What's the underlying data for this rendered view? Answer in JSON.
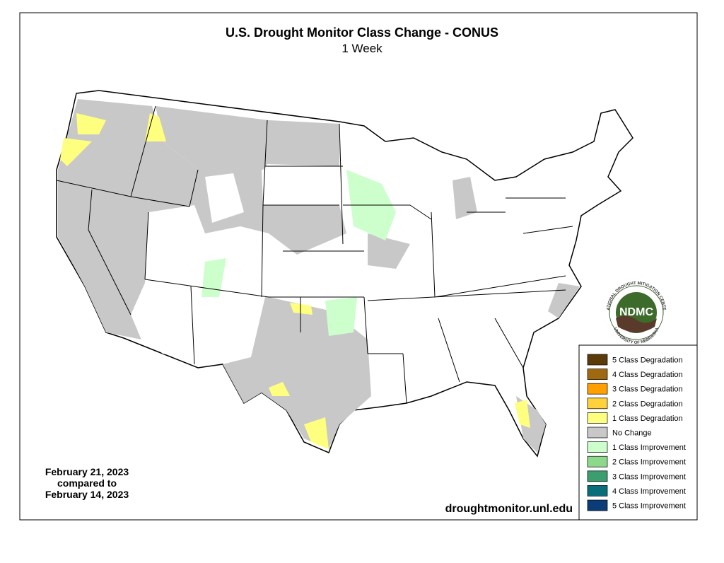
{
  "header": {
    "title": "U.S. Drought Monitor Class Change - CONUS",
    "subtitle": "1 Week"
  },
  "date_note": [
    "February 21, 2023",
    "compared to",
    "February 14, 2023"
  ],
  "url": "droughtmonitor.unl.edu",
  "logo": {
    "ring_top": "NATIONAL DROUGHT MITIGATION CENTER",
    "center": "NDMC",
    "ring_bottom": "UNIVERSITY OF NEBRASKA"
  },
  "legend": {
    "items": [
      {
        "label": "5 Class Degradation",
        "color": "#5c3a0a"
      },
      {
        "label": "4 Class Degradation",
        "color": "#a0690f"
      },
      {
        "label": "3 Class Degradation",
        "color": "#ff9f00"
      },
      {
        "label": "2 Class Degradation",
        "color": "#ffd23c"
      },
      {
        "label": "1 Class Degradation",
        "color": "#ffff7f"
      },
      {
        "label": "No Change",
        "color": "#c8c8c8"
      },
      {
        "label": "1 Class Improvement",
        "color": "#ccffcc"
      },
      {
        "label": "2 Class Improvement",
        "color": "#8cd98c"
      },
      {
        "label": "3 Class Improvement",
        "color": "#3a9e6e"
      },
      {
        "label": "4 Class Improvement",
        "color": "#0a6e7a"
      },
      {
        "label": "5 Class Improvement",
        "color": "#0a3c78"
      }
    ]
  }
}
